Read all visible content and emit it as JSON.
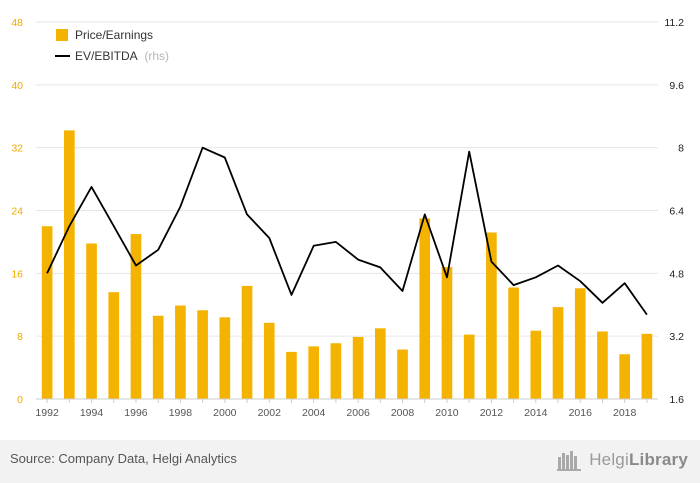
{
  "chart_data": {
    "type": "bar",
    "x": [
      1992,
      1993,
      1994,
      1995,
      1996,
      1997,
      1998,
      1999,
      2000,
      2001,
      2002,
      2003,
      2004,
      2005,
      2006,
      2007,
      2008,
      2009,
      2010,
      2011,
      2012,
      2013,
      2014,
      2015,
      2016,
      2017,
      2018,
      2019
    ],
    "x_tick_labels": [
      "1992",
      "1994",
      "1996",
      "1998",
      "2000",
      "2002",
      "2004",
      "2006",
      "2008",
      "2010",
      "2012",
      "2014",
      "2016",
      "2018"
    ],
    "series": [
      {
        "name": "Price/Earnings",
        "type": "bar",
        "axis": "left",
        "color": "#f5b301",
        "values": [
          22.0,
          34.2,
          19.8,
          13.6,
          21.0,
          10.6,
          11.9,
          11.3,
          10.4,
          14.4,
          9.7,
          6.0,
          6.7,
          7.1,
          7.9,
          9.0,
          6.3,
          23.0,
          16.8,
          8.2,
          21.2,
          14.2,
          8.7,
          11.7,
          14.1,
          8.6,
          5.7,
          8.3
        ]
      },
      {
        "name": "EV/EBITDA",
        "name_note": "(rhs)",
        "type": "line",
        "axis": "right",
        "color": "#000000",
        "values": [
          4.8,
          6.0,
          7.0,
          6.0,
          5.0,
          5.4,
          6.5,
          8.0,
          7.75,
          6.3,
          5.7,
          4.25,
          5.5,
          5.6,
          5.15,
          4.95,
          4.35,
          6.3,
          4.7,
          7.9,
          5.1,
          4.5,
          4.7,
          5.0,
          4.6,
          4.05,
          4.55,
          3.75
        ]
      }
    ],
    "left_axis": {
      "min": 0,
      "max": 48,
      "ticks": [
        "0",
        "8",
        "16",
        "24",
        "32",
        "40",
        "48"
      ],
      "color": "#f0aa00"
    },
    "right_axis": {
      "min": 1.6,
      "max": 11.2,
      "ticks": [
        "1.6",
        "3.2",
        "4.8",
        "6.4",
        "8",
        "9.6",
        "11.2"
      ],
      "color": "#222222"
    },
    "grid": true,
    "legend": "top-left"
  },
  "footer": {
    "source": "Source: Company Data, Helgi Analytics",
    "brand_light": "Helgi",
    "brand_bold": "Library"
  }
}
